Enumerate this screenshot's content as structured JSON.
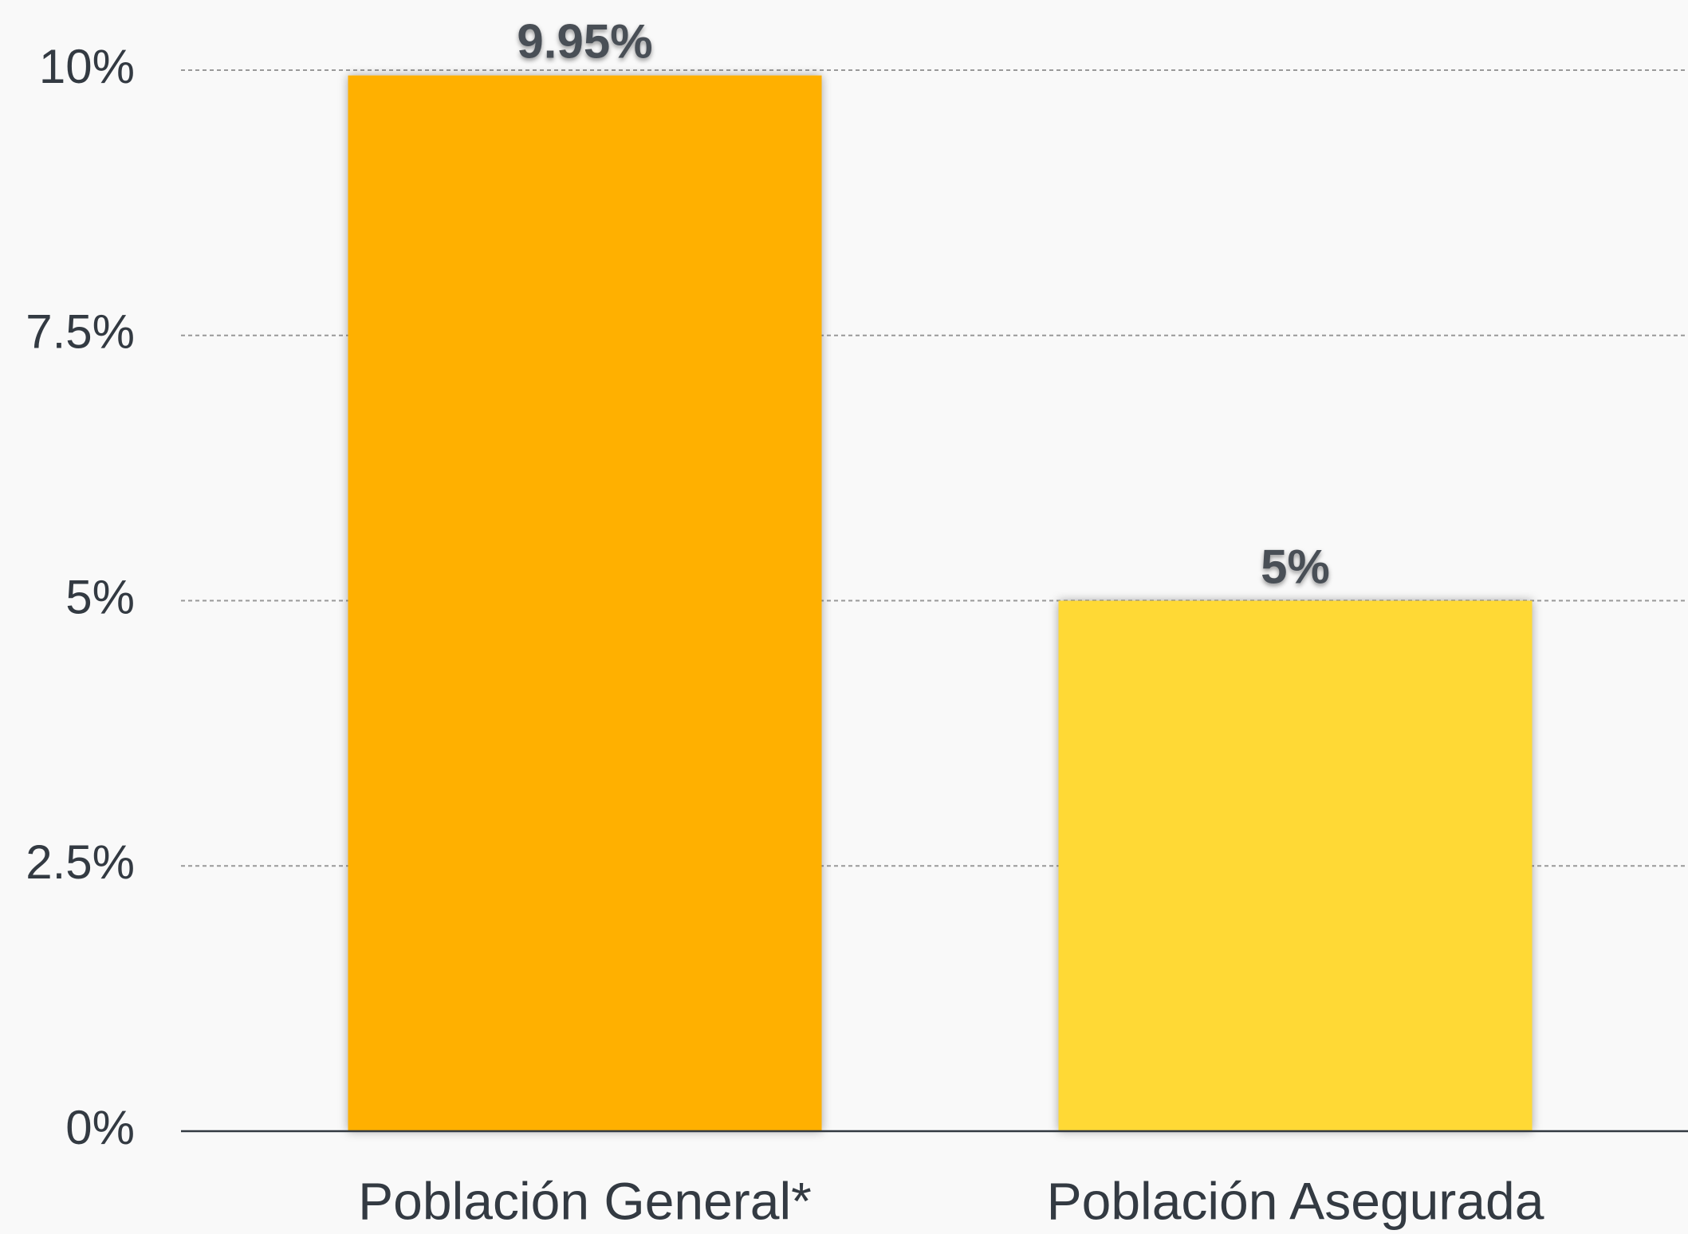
{
  "chart_data": {
    "type": "bar",
    "categories": [
      "Población General*",
      "Población Asegurada"
    ],
    "values": [
      9.95,
      5
    ],
    "value_labels": [
      "9.95%",
      "5%"
    ],
    "colors": [
      "#ffb000",
      "#ffd935"
    ],
    "ylim": [
      0,
      10
    ],
    "yticks": [
      {
        "value": 0,
        "label": "0%"
      },
      {
        "value": 2.5,
        "label": "2.5%"
      },
      {
        "value": 5,
        "label": "5%"
      },
      {
        "value": 7.5,
        "label": "7.5%"
      },
      {
        "value": 10,
        "label": "10%"
      }
    ],
    "grid": true
  }
}
